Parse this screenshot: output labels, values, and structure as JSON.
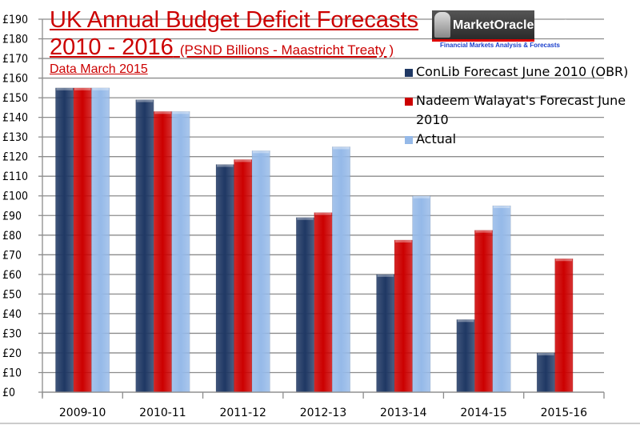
{
  "chart_data": {
    "type": "bar",
    "title": "UK Annual Budget Deficit Forecasts",
    "title_line2_main": "2010 - 2016",
    "title_line2_sub": "(PSND Billions - Maastricht Treaty )",
    "subtitle": "Data  March  2015",
    "xlabel": "",
    "ylabel": "",
    "ylim": [
      0,
      190
    ],
    "ytick_step": 10,
    "ytick_prefix": "£",
    "yticks": [
      "£0",
      "£10",
      "£20",
      "£30",
      "£40",
      "£50",
      "£60",
      "£70",
      "£80",
      "£90",
      "£100",
      "£110",
      "£120",
      "£130",
      "£140",
      "£150",
      "£160",
      "£170",
      "£180",
      "£190"
    ],
    "grid": true,
    "legend_position": "top-right",
    "categories": [
      "2009-10",
      "2010-11",
      "2011-12",
      "2012-13",
      "2013-14",
      "2014-15",
      "2015-16"
    ],
    "series": [
      {
        "name": "ConLib Forecast June 2010 (OBR)",
        "color": "#1f3864",
        "values": [
          155,
          149,
          116,
          89,
          60,
          37,
          20
        ]
      },
      {
        "name": "Nadeem Walayat's Forecast June 2010",
        "color": "#cc0000",
        "values": [
          155,
          143,
          118.5,
          91.5,
          77.5,
          82.5,
          68
        ]
      },
      {
        "name": "Actual",
        "color": "#95b9e8",
        "values": [
          155,
          143,
          123,
          125,
          100,
          95,
          null
        ]
      }
    ]
  },
  "legend": {
    "items": [
      {
        "label": "ConLib Forecast June 2010 (OBR)",
        "color": "#1f3864"
      },
      {
        "label": "Nadeem Walayat's Forecast June 2010",
        "color": "#cc0000"
      },
      {
        "label": "Actual",
        "color": "#95b9e8"
      }
    ]
  },
  "logo": {
    "name": "MarketOracle.co.uk",
    "tagline": "Financial Markets Analysis & Forecasts"
  }
}
